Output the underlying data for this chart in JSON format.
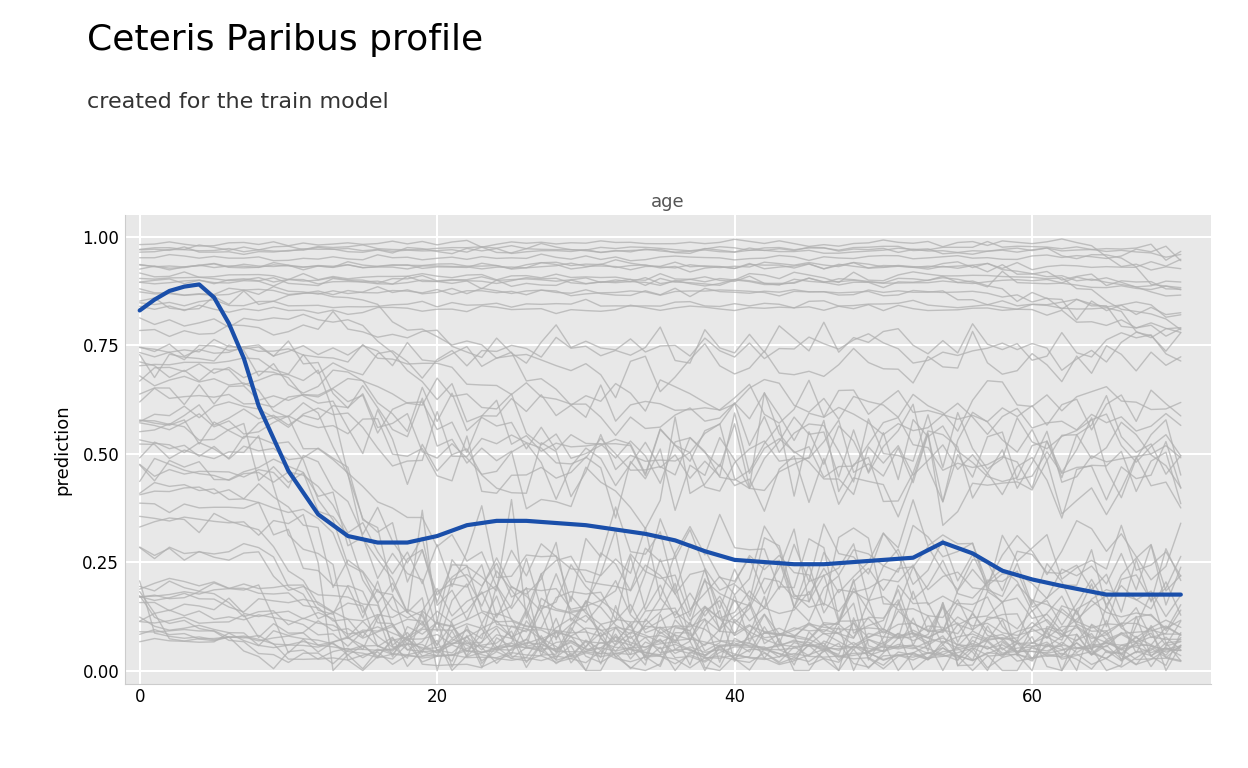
{
  "title": "Ceteris Paribus profile",
  "subtitle": "created for the train model",
  "xlabel": "age",
  "ylabel": "prediction",
  "xlim": [
    -1,
    72
  ],
  "ylim": [
    -0.03,
    1.05
  ],
  "xticks": [
    0,
    20,
    40,
    60
  ],
  "yticks": [
    0.0,
    0.25,
    0.5,
    0.75,
    1.0
  ],
  "panel_bg": "#e8e8e8",
  "grid_color": "#ffffff",
  "cp_color": "#b0b0b0",
  "pdp_color": "#1a4faa",
  "cp_alpha": 0.75,
  "cp_lw": 1.0,
  "pdp_lw": 3.0,
  "title_fontsize": 26,
  "subtitle_fontsize": 16,
  "label_fontsize": 13,
  "tick_fontsize": 12,
  "seed": 42
}
